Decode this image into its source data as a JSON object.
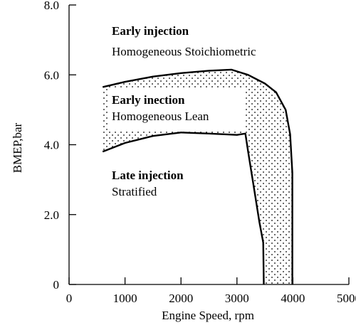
{
  "chart_data": {
    "type": "line",
    "title": "",
    "xlabel": "Engine Speed, rpm",
    "ylabel": "BMEP,bar",
    "xlim": [
      0,
      5000
    ],
    "ylim": [
      0,
      8.0
    ],
    "x_ticks": [
      0,
      1000,
      2000,
      3000,
      4000,
      5000
    ],
    "x_tick_labels": [
      "0",
      "1000",
      "2000",
      "3000",
      "4000",
      "5000"
    ],
    "y_ticks": [
      0,
      2.0,
      4.0,
      6.0,
      8.0
    ],
    "y_tick_labels": [
      "0",
      "2.0",
      "4.0",
      "6.0",
      "8.0"
    ],
    "grid": false,
    "series": [
      {
        "values_x": [
          600,
          1000,
          1500,
          2000,
          2500,
          2900,
          3200,
          3500,
          3700,
          3870,
          3950,
          3990,
          3990
        ],
        "values_y": [
          5.65,
          5.8,
          5.95,
          6.05,
          6.12,
          6.15,
          6.0,
          5.75,
          5.5,
          5.0,
          4.3,
          3.2,
          0
        ]
      },
      {
        "values_x": [
          600,
          1000,
          1500,
          2000,
          2500,
          3000,
          3150,
          3200,
          3300,
          3400,
          3470,
          3480
        ],
        "values_y": [
          3.8,
          4.05,
          4.25,
          4.35,
          4.32,
          4.28,
          4.32,
          3.8,
          2.8,
          1.8,
          1.2,
          0
        ]
      }
    ],
    "annotations": [
      {
        "title": "Early injection",
        "text": "Homogeneous Stoichiometric",
        "x": 1500,
        "y": 7.55
      },
      {
        "title": "Early inection",
        "text": "Homogeneous Lean",
        "x": 1500,
        "y": 5.35
      },
      {
        "title": "Late injection",
        "text": "Stratified",
        "x": 1500,
        "y": 3.2
      }
    ]
  }
}
